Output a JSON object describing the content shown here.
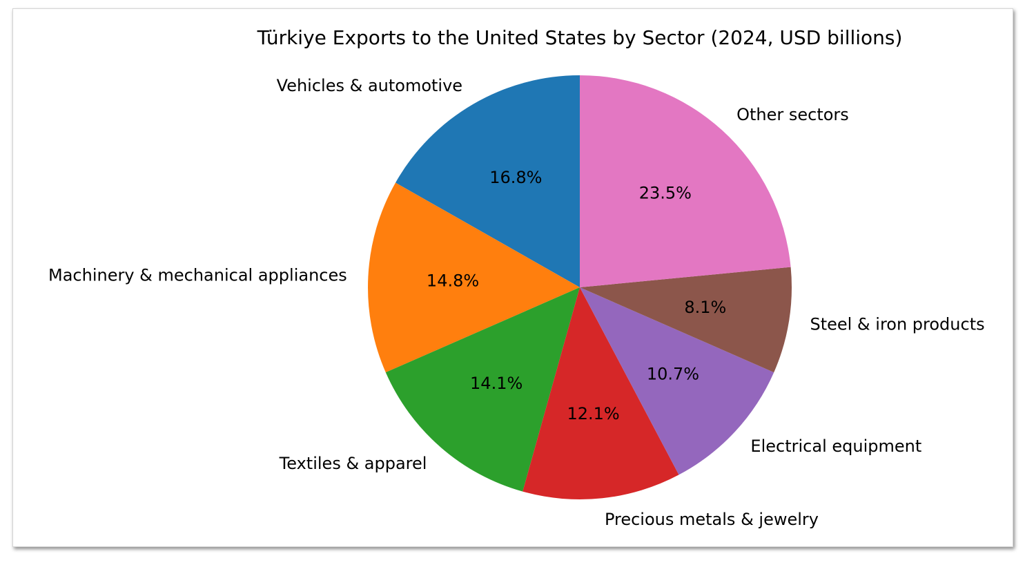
{
  "chart_data": {
    "type": "pie",
    "title": "Türkiye Exports to the United States by Sector (2024, USD billions)",
    "start_angle_deg": 90,
    "direction": "counterclockwise",
    "slices": [
      {
        "label": "Vehicles & automotive",
        "percent": 16.8,
        "percent_label": "16.8%",
        "color": "#1f77b4"
      },
      {
        "label": "Machinery & mechanical appliances",
        "percent": 14.8,
        "percent_label": "14.8%",
        "color": "#ff7f0e"
      },
      {
        "label": "Textiles & apparel",
        "percent": 14.1,
        "percent_label": "14.1%",
        "color": "#2ca02c"
      },
      {
        "label": "Precious metals & jewelry",
        "percent": 12.1,
        "percent_label": "12.1%",
        "color": "#d62728"
      },
      {
        "label": "Electrical equipment",
        "percent": 10.7,
        "percent_label": "10.7%",
        "color": "#9467bd"
      },
      {
        "label": "Steel & iron products",
        "percent": 8.1,
        "percent_label": "8.1%",
        "color": "#8c564b"
      },
      {
        "label": "Other sectors",
        "percent": 23.5,
        "percent_label": "23.5%",
        "color": "#e377c2"
      }
    ]
  }
}
